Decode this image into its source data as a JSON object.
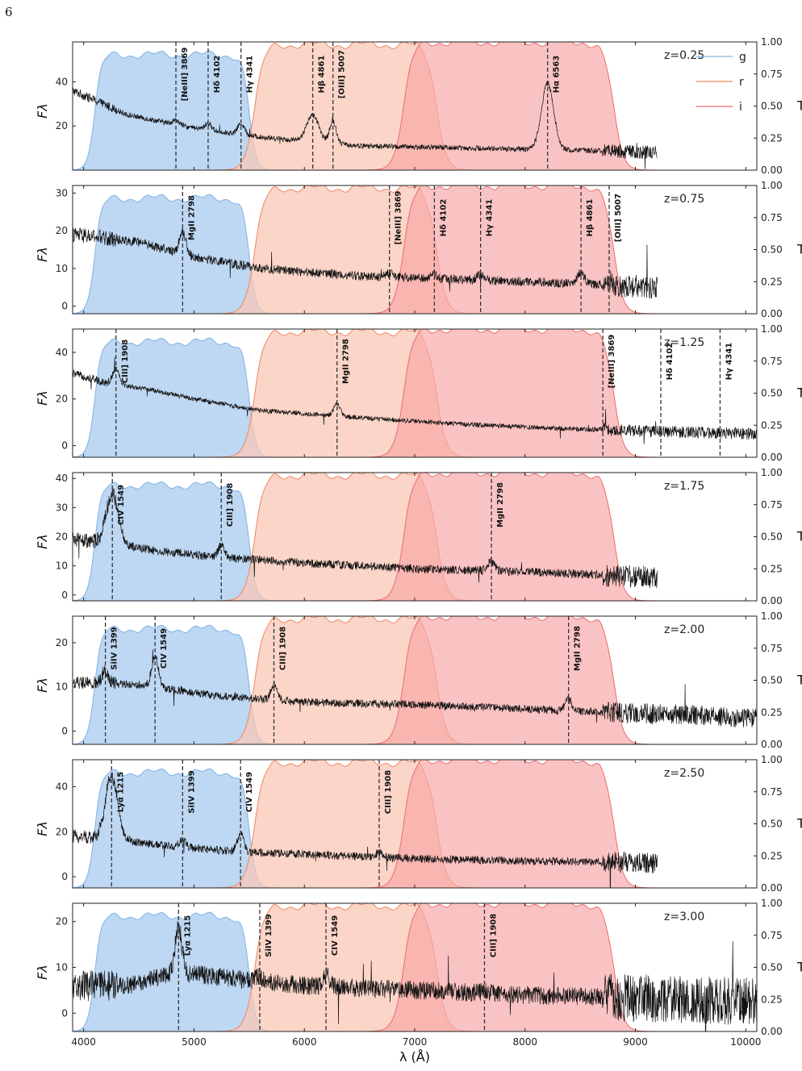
{
  "page_number": "6",
  "chart_data": {
    "type": "line",
    "shared_xlabel": "λ (Å)",
    "ylabel_left": "Fλ",
    "ylabel_right": "T",
    "xlim": [
      3900,
      10100
    ],
    "x_ticks": [
      4000,
      5000,
      6000,
      7000,
      8000,
      9000,
      10000
    ],
    "right_ylim": [
      0,
      1
    ],
    "right_ticks": [
      "0.00",
      "0.25",
      "0.50",
      "0.75",
      "1.00"
    ],
    "legend": {
      "placement": "top-right",
      "entries": [
        "g",
        "r",
        "i"
      ]
    },
    "filters": [
      {
        "name": "g",
        "color": "#a8c9ee",
        "edge": "#7fb2e8",
        "lambda_range": [
          4100,
          5500
        ],
        "transmission_max": 0.9
      },
      {
        "name": "r",
        "color": "#f8c7b6",
        "edge": "#f2865f",
        "lambda_range": [
          5550,
          7200
        ],
        "transmission_max": 0.98
      },
      {
        "name": "i",
        "color": "#f7a7a7",
        "edge": "#ee6a6a",
        "lambda_range": [
          6900,
          8800
        ],
        "transmission_max": 1.0
      }
    ],
    "panels": [
      {
        "z_label": "z=0.25",
        "ylim": [
          0,
          58
        ],
        "y_ticks": [
          20,
          40
        ],
        "spec_end": 9200,
        "continuum": [
          [
            3900,
            36
          ],
          [
            4400,
            25
          ],
          [
            5000,
            19
          ],
          [
            5600,
            15
          ],
          [
            6500,
            11
          ],
          [
            7500,
            10
          ],
          [
            8500,
            9
          ],
          [
            9200,
            8
          ]
        ],
        "noise": 1.2,
        "lines": [
          {
            "label": "[NeIII] 3869",
            "wave": 4836,
            "peak": 2
          },
          {
            "label": "Hδ 4102",
            "wave": 5128,
            "peak": 3
          },
          {
            "label": "Hγ 4341",
            "wave": 5426,
            "peak": 5
          },
          {
            "label": "Hβ 4861",
            "wave": 6076,
            "peak": 12
          },
          {
            "label": "[OIII] 5007",
            "wave": 6259,
            "peak": 10
          },
          {
            "label": "Hα 6563",
            "wave": 8204,
            "peak": 30
          }
        ]
      },
      {
        "z_label": "z=0.75",
        "ylim": [
          -2,
          32
        ],
        "y_ticks": [
          0,
          10,
          20,
          30
        ],
        "spec_end": 9200,
        "continuum": [
          [
            3900,
            19
          ],
          [
            4500,
            17
          ],
          [
            5000,
            13
          ],
          [
            5600,
            10
          ],
          [
            6500,
            8
          ],
          [
            7500,
            7
          ],
          [
            8500,
            6
          ],
          [
            9200,
            5
          ]
        ],
        "noise": 1.2,
        "lines": [
          {
            "label": "MgII 2798",
            "wave": 4897,
            "peak": 6
          },
          {
            "label": "[NeIII] 3869",
            "wave": 6771,
            "peak": 1
          },
          {
            "label": "Hδ 4102",
            "wave": 7178,
            "peak": 1
          },
          {
            "label": "Hγ 4341",
            "wave": 7597,
            "peak": 1.5
          },
          {
            "label": "Hβ 4861",
            "wave": 8507,
            "peak": 3
          },
          {
            "label": "[OIII] 5007",
            "wave": 8762,
            "peak": 1
          }
        ]
      },
      {
        "z_label": "z=1.25",
        "ylim": [
          -5,
          50
        ],
        "y_ticks": [
          0,
          20,
          40
        ],
        "spec_end": 10100,
        "continuum": [
          [
            3900,
            31
          ],
          [
            4200,
            27
          ],
          [
            4600,
            24
          ],
          [
            5000,
            20
          ],
          [
            5600,
            15
          ],
          [
            6500,
            12
          ],
          [
            7500,
            9
          ],
          [
            8500,
            7
          ],
          [
            10100,
            5
          ]
        ],
        "noise": 1.0,
        "lines": [
          {
            "label": "CIII] 1908",
            "wave": 4293,
            "peak": 7
          },
          {
            "label": "MgII 2798",
            "wave": 6296,
            "peak": 5
          },
          {
            "label": "[NeIII] 3869",
            "wave": 8705,
            "peak": 0.5
          },
          {
            "label": "Hδ 4102",
            "wave": 9230,
            "peak": 0
          },
          {
            "label": "Hγ 4341",
            "wave": 9767,
            "peak": 0
          }
        ]
      },
      {
        "z_label": "z=1.75",
        "ylim": [
          -2,
          42
        ],
        "y_ticks": [
          0,
          10,
          20,
          30,
          40
        ],
        "spec_end": 9200,
        "continuum": [
          [
            3900,
            19
          ],
          [
            4200,
            18
          ],
          [
            4700,
            15
          ],
          [
            5200,
            13
          ],
          [
            6000,
            11
          ],
          [
            7000,
            9
          ],
          [
            8000,
            8
          ],
          [
            9200,
            6
          ]
        ],
        "noise": 1.5,
        "lines": [
          {
            "label": "CIV 1549",
            "wave": 4260,
            "peak": 17
          },
          {
            "label": "CIII] 1908",
            "wave": 5247,
            "peak": 4
          },
          {
            "label": "MgII 2798",
            "wave": 7695,
            "peak": 3
          }
        ]
      },
      {
        "z_label": "z=2.00",
        "ylim": [
          -3,
          26
        ],
        "y_ticks": [
          0,
          10,
          20
        ],
        "spec_end": 10100,
        "continuum": [
          [
            3900,
            11
          ],
          [
            4500,
            10.5
          ],
          [
            5200,
            8
          ],
          [
            6000,
            6.5
          ],
          [
            7000,
            6
          ],
          [
            8000,
            5
          ],
          [
            9000,
            4
          ],
          [
            10100,
            3
          ]
        ],
        "noise": 0.9,
        "lines": [
          {
            "label": "SiIV 1399",
            "wave": 4197,
            "peak": 3
          },
          {
            "label": "CIV 1549",
            "wave": 4647,
            "peak": 7
          },
          {
            "label": "CIII] 1908",
            "wave": 5724,
            "peak": 3.5
          },
          {
            "label": "MgII 2798",
            "wave": 8394,
            "peak": 2.5
          }
        ]
      },
      {
        "z_label": "z=2.50",
        "ylim": [
          -5,
          52
        ],
        "y_ticks": [
          0,
          20,
          40
        ],
        "spec_end": 9200,
        "continuum": [
          [
            3900,
            18
          ],
          [
            4200,
            17
          ],
          [
            4700,
            14
          ],
          [
            5400,
            11
          ],
          [
            6000,
            10
          ],
          [
            7000,
            8
          ],
          [
            8000,
            7
          ],
          [
            9200,
            6
          ]
        ],
        "noise": 1.8,
        "lines": [
          {
            "label": "Lyα 1215",
            "wave": 4253,
            "peak": 28
          },
          {
            "label": "SiIV 1399",
            "wave": 4897,
            "peak": 3
          },
          {
            "label": "CIV 1549",
            "wave": 5422,
            "peak": 8
          },
          {
            "label": "CIII] 1908",
            "wave": 6678,
            "peak": 2
          }
        ]
      },
      {
        "z_label": "z=3.00",
        "ylim": [
          -4,
          24
        ],
        "y_ticks": [
          0,
          10,
          20
        ],
        "spec_end": 10100,
        "continuum": [
          [
            3900,
            6
          ],
          [
            4400,
            6
          ],
          [
            4850,
            9
          ],
          [
            5200,
            8
          ],
          [
            6000,
            6
          ],
          [
            7000,
            5
          ],
          [
            8000,
            4
          ],
          [
            10100,
            2.5
          ]
        ],
        "noise": 2.0,
        "lines": [
          {
            "label": "Lyα 1215",
            "wave": 4860,
            "peak": 10
          },
          {
            "label": "SiIV 1399",
            "wave": 5596,
            "peak": 1
          },
          {
            "label": "CIV 1549",
            "wave": 6196,
            "peak": 2.5
          },
          {
            "label": "CIII] 1908",
            "wave": 7632,
            "peak": 0.5
          }
        ]
      }
    ]
  }
}
